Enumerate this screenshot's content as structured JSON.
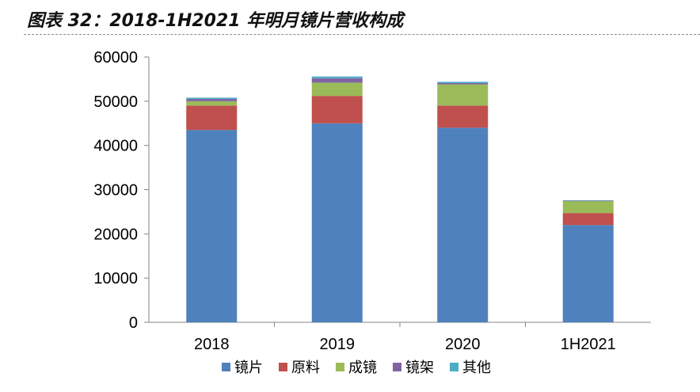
{
  "page": {
    "title": "图表 32：2018-1H2021 年明月镜片营收构成"
  },
  "colors": {
    "镜片": "#4f81bd",
    "原料": "#c0504d",
    "成镜": "#9bbb59",
    "镜架": "#8064a2",
    "其他": "#4bacc6",
    "axis": "#868686"
  },
  "chart_data": {
    "type": "bar",
    "stacked": true,
    "title": "",
    "xlabel": "",
    "ylabel": "",
    "ylim": [
      0,
      60000
    ],
    "yticks": [
      0,
      10000,
      20000,
      30000,
      40000,
      50000,
      60000
    ],
    "grid": false,
    "legend_position": "bottom",
    "categories": [
      "2018",
      "2019",
      "2020",
      "1H2021"
    ],
    "series": [
      {
        "name": "镜片",
        "values": [
          43500,
          45000,
          44000,
          22000
        ]
      },
      {
        "name": "原料",
        "values": [
          5500,
          6200,
          5000,
          2700
        ]
      },
      {
        "name": "成镜",
        "values": [
          1000,
          3000,
          4800,
          2700
        ]
      },
      {
        "name": "镜架",
        "values": [
          500,
          1000,
          300,
          100
        ]
      },
      {
        "name": "其他",
        "values": [
          300,
          400,
          300,
          100
        ]
      }
    ]
  }
}
